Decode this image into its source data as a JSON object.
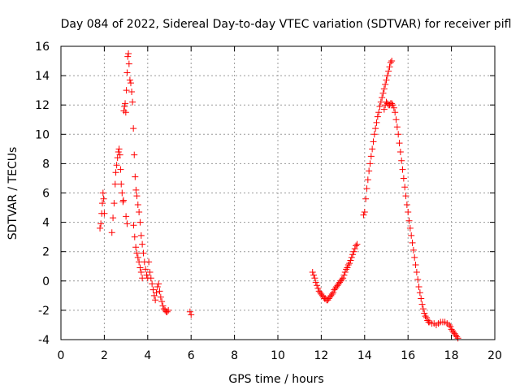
{
  "chart_data": {
    "type": "scatter",
    "title": "Day 084 of 2022, Sidereal Day-to-day VTEC variation (SDTVAR) for receiver pifl",
    "xlabel": "GPS time / hours",
    "ylabel": "SDTVAR / TECUs",
    "xlim": [
      0,
      20
    ],
    "ylim": [
      -4,
      16
    ],
    "xticks": [
      0,
      2,
      4,
      6,
      8,
      10,
      12,
      14,
      16,
      18,
      20
    ],
    "yticks": [
      -4,
      -2,
      0,
      2,
      4,
      6,
      8,
      10,
      12,
      14,
      16
    ],
    "grid": true,
    "marker": "plus",
    "color": "#ff0000",
    "series": [
      {
        "name": "SDTVAR",
        "points": [
          [
            1.8,
            3.6
          ],
          [
            1.84,
            3.9
          ],
          [
            1.88,
            4.6
          ],
          [
            1.91,
            5.3
          ],
          [
            1.94,
            6.0
          ],
          [
            1.97,
            5.6
          ],
          [
            2.0,
            4.6
          ],
          [
            2.35,
            3.3
          ],
          [
            2.4,
            4.3
          ],
          [
            2.45,
            5.3
          ],
          [
            2.5,
            6.6
          ],
          [
            2.53,
            7.4
          ],
          [
            2.57,
            7.9
          ],
          [
            2.61,
            8.4
          ],
          [
            2.65,
            8.8
          ],
          [
            2.68,
            9.0
          ],
          [
            2.72,
            8.6
          ],
          [
            2.75,
            7.6
          ],
          [
            2.78,
            6.6
          ],
          [
            2.82,
            6.0
          ],
          [
            2.86,
            5.4
          ],
          [
            2.88,
            5.5
          ],
          [
            2.9,
            11.6
          ],
          [
            2.93,
            11.9
          ],
          [
            2.96,
            12.1
          ],
          [
            2.99,
            11.5
          ],
          [
            3.02,
            13.0
          ],
          [
            3.05,
            14.2
          ],
          [
            3.08,
            15.3
          ],
          [
            3.11,
            15.5
          ],
          [
            3.14,
            14.8
          ],
          [
            3.18,
            13.7
          ],
          [
            3.22,
            13.5
          ],
          [
            3.26,
            12.9
          ],
          [
            3.3,
            12.2
          ],
          [
            3.34,
            10.4
          ],
          [
            3.38,
            8.6
          ],
          [
            3.42,
            7.1
          ],
          [
            3.46,
            6.2
          ],
          [
            3.5,
            5.8
          ],
          [
            3.55,
            5.2
          ],
          [
            3.6,
            4.7
          ],
          [
            3.65,
            4.0
          ],
          [
            3.7,
            3.1
          ],
          [
            3.75,
            2.5
          ],
          [
            3.8,
            1.9
          ],
          [
            3.85,
            1.3
          ],
          [
            3.9,
            0.8
          ],
          [
            3.95,
            0.4
          ],
          [
            4.0,
            0.2
          ],
          [
            3.0,
            4.4
          ],
          [
            3.05,
            3.9
          ],
          [
            3.35,
            3.8
          ],
          [
            3.4,
            3.0
          ],
          [
            3.45,
            2.3
          ],
          [
            3.5,
            1.9
          ],
          [
            3.55,
            1.6
          ],
          [
            3.6,
            1.3
          ],
          [
            3.65,
            0.9
          ],
          [
            3.7,
            0.6
          ],
          [
            3.75,
            0.2
          ],
          [
            4.05,
            1.3
          ],
          [
            4.1,
            0.6
          ],
          [
            4.15,
            0.2
          ],
          [
            4.2,
            -0.2
          ],
          [
            4.25,
            -0.6
          ],
          [
            4.3,
            -1.0
          ],
          [
            4.35,
            -1.3
          ],
          [
            4.4,
            -0.8
          ],
          [
            4.45,
            -0.4
          ],
          [
            4.5,
            -0.2
          ],
          [
            4.55,
            -0.7
          ],
          [
            4.6,
            -1.1
          ],
          [
            4.65,
            -1.4
          ],
          [
            4.7,
            -1.7
          ],
          [
            4.75,
            -1.9
          ],
          [
            4.8,
            -2.0
          ],
          [
            4.85,
            -2.1
          ],
          [
            4.9,
            -2.1
          ],
          [
            4.95,
            -2.0
          ],
          [
            5.95,
            -2.1
          ],
          [
            6.0,
            -2.3
          ],
          [
            11.6,
            0.6
          ],
          [
            11.65,
            0.4
          ],
          [
            11.7,
            0.2
          ],
          [
            11.75,
            -0.1
          ],
          [
            11.8,
            -0.3
          ],
          [
            11.85,
            -0.5
          ],
          [
            11.9,
            -0.7
          ],
          [
            11.95,
            -0.8
          ],
          [
            12.0,
            -0.9
          ],
          [
            12.05,
            -1.0
          ],
          [
            12.1,
            -1.1
          ],
          [
            12.15,
            -1.2
          ],
          [
            12.2,
            -1.2
          ],
          [
            12.25,
            -1.3
          ],
          [
            12.3,
            -1.3
          ],
          [
            12.35,
            -1.2
          ],
          [
            12.4,
            -1.1
          ],
          [
            12.45,
            -1.0
          ],
          [
            12.5,
            -0.9
          ],
          [
            12.55,
            -0.8
          ],
          [
            12.6,
            -0.6
          ],
          [
            12.65,
            -0.5
          ],
          [
            12.7,
            -0.4
          ],
          [
            12.75,
            -0.3
          ],
          [
            12.8,
            -0.2
          ],
          [
            12.85,
            -0.1
          ],
          [
            12.9,
            0.0
          ],
          [
            12.95,
            0.1
          ],
          [
            13.0,
            0.2
          ],
          [
            13.05,
            0.4
          ],
          [
            13.1,
            0.6
          ],
          [
            13.15,
            0.8
          ],
          [
            13.2,
            0.9
          ],
          [
            13.25,
            1.1
          ],
          [
            13.3,
            1.2
          ],
          [
            13.35,
            1.4
          ],
          [
            13.4,
            1.6
          ],
          [
            13.45,
            1.8
          ],
          [
            13.5,
            2.0
          ],
          [
            13.55,
            2.2
          ],
          [
            13.6,
            2.4
          ],
          [
            13.65,
            2.5
          ],
          [
            13.95,
            4.5
          ],
          [
            14.0,
            4.7
          ],
          [
            14.05,
            5.6
          ],
          [
            14.1,
            6.3
          ],
          [
            14.15,
            6.9
          ],
          [
            14.2,
            7.5
          ],
          [
            14.25,
            8.0
          ],
          [
            14.3,
            8.5
          ],
          [
            14.35,
            9.0
          ],
          [
            14.4,
            9.5
          ],
          [
            14.45,
            10.0
          ],
          [
            14.5,
            10.4
          ],
          [
            14.55,
            10.8
          ],
          [
            14.6,
            11.2
          ],
          [
            14.65,
            11.5
          ],
          [
            14.7,
            11.9
          ],
          [
            14.75,
            12.2
          ],
          [
            14.8,
            12.5
          ],
          [
            14.85,
            12.8
          ],
          [
            14.9,
            13.1
          ],
          [
            14.95,
            13.4
          ],
          [
            15.0,
            13.7
          ],
          [
            15.05,
            14.0
          ],
          [
            15.1,
            14.3
          ],
          [
            15.15,
            14.6
          ],
          [
            15.2,
            14.9
          ],
          [
            15.25,
            15.0
          ],
          [
            14.9,
            11.7
          ],
          [
            14.95,
            12.0
          ],
          [
            15.0,
            12.2
          ],
          [
            15.05,
            12.1
          ],
          [
            15.1,
            12.0
          ],
          [
            15.15,
            12.0
          ],
          [
            15.2,
            12.1
          ],
          [
            15.25,
            12.1
          ],
          [
            15.3,
            12.0
          ],
          [
            15.35,
            11.8
          ],
          [
            15.4,
            11.5
          ],
          [
            15.45,
            11.0
          ],
          [
            15.5,
            10.5
          ],
          [
            15.55,
            10.0
          ],
          [
            15.6,
            9.4
          ],
          [
            15.65,
            8.8
          ],
          [
            15.7,
            8.2
          ],
          [
            15.75,
            7.6
          ],
          [
            15.8,
            7.0
          ],
          [
            15.85,
            6.4
          ],
          [
            15.9,
            5.8
          ],
          [
            15.95,
            5.2
          ],
          [
            16.0,
            4.7
          ],
          [
            16.05,
            4.1
          ],
          [
            16.1,
            3.6
          ],
          [
            16.15,
            3.1
          ],
          [
            16.2,
            2.6
          ],
          [
            16.25,
            2.1
          ],
          [
            16.3,
            1.6
          ],
          [
            16.35,
            1.1
          ],
          [
            16.4,
            0.6
          ],
          [
            16.45,
            0.1
          ],
          [
            16.5,
            -0.4
          ],
          [
            16.55,
            -0.8
          ],
          [
            16.6,
            -1.2
          ],
          [
            16.65,
            -1.6
          ],
          [
            16.7,
            -1.9
          ],
          [
            16.75,
            -2.2
          ],
          [
            16.8,
            -2.4
          ],
          [
            16.85,
            -2.5
          ],
          [
            16.9,
            -2.7
          ],
          [
            16.95,
            -2.8
          ],
          [
            17.0,
            -2.8
          ],
          [
            17.1,
            -2.9
          ],
          [
            17.2,
            -2.9
          ],
          [
            17.3,
            -3.0
          ],
          [
            17.4,
            -2.9
          ],
          [
            17.5,
            -2.8
          ],
          [
            17.6,
            -2.8
          ],
          [
            17.7,
            -2.8
          ],
          [
            17.8,
            -2.9
          ],
          [
            17.9,
            -3.0
          ],
          [
            17.95,
            -3.1
          ],
          [
            18.0,
            -3.3
          ],
          [
            18.05,
            -3.4
          ],
          [
            18.1,
            -3.5
          ],
          [
            18.15,
            -3.6
          ],
          [
            18.2,
            -3.7
          ],
          [
            18.25,
            -3.8
          ],
          [
            18.3,
            -3.9
          ]
        ]
      }
    ]
  }
}
